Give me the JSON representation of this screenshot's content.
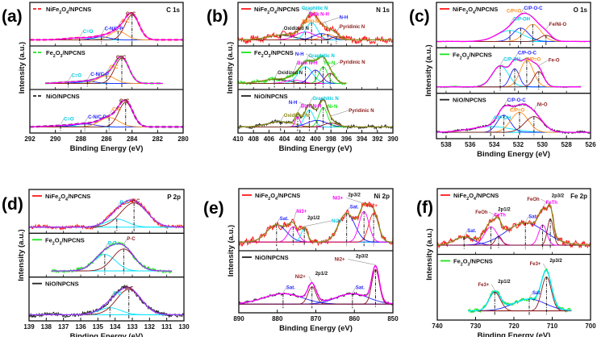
{
  "y_axis_label": "Intensity (a.u.)",
  "x_axis_label": "Binding Energy (eV)",
  "colors": {
    "NiFe2O4": "#ff1a1a",
    "Fe2O3": "#19e619",
    "NiO": "#222222"
  },
  "chart_data": [
    {
      "type": "line",
      "panel": "(a)",
      "title": "C 1s",
      "xlim": [
        292,
        280
      ],
      "ticks": [
        292,
        290,
        288,
        286,
        284,
        282,
        280
      ],
      "xlabel": "Binding Energy (eV)",
      "ylabel": "Intensity (a.u.)",
      "envelope_color": "#ff00ff",
      "legend_style": "dashed",
      "subpanels": [
        {
          "legend": "NiFe2O4/NPCNS",
          "color": "#ff1a1a",
          "noise": 0.0,
          "range": [
            292,
            280
          ],
          "peaks": [
            {
              "label": "C=O",
              "center": 288.1,
              "amp": 0.08,
              "fwhm": 2.5,
              "color": "#00e5ff"
            },
            {
              "label": "C-N/C-P",
              "center": 286.4,
              "amp": 0.12,
              "fwhm": 1.5,
              "color": "#1f1fff"
            },
            {
              "label": "C-C",
              "center": 285.1,
              "amp": 0.35,
              "fwhm": 1.5,
              "color": "#ff8c1a"
            },
            {
              "label": "C=C",
              "center": 284.0,
              "amp": 1.0,
              "fwhm": 1.3,
              "color": "#8b1a1a"
            }
          ]
        },
        {
          "legend": "Fe2O3/NPCNS",
          "color": "#19e619",
          "noise": 0.0,
          "range": [
            290.8,
            281.6
          ],
          "peaks": [
            {
              "label": "C=O",
              "center": 289.0,
              "amp": 0.05,
              "fwhm": 2.0,
              "color": "#00e5ff"
            },
            {
              "label": "C-N/C-P",
              "center": 287.5,
              "amp": 0.08,
              "fwhm": 1.6,
              "color": "#1f1fff"
            },
            {
              "label": "C-C",
              "center": 286.0,
              "amp": 0.3,
              "fwhm": 1.6,
              "color": "#ff8c1a"
            },
            {
              "label": "C=C",
              "center": 284.8,
              "amp": 1.0,
              "fwhm": 1.3,
              "color": "#8b1a1a"
            }
          ]
        },
        {
          "legend": "NiO/NPCNS",
          "color": "#222222",
          "noise": 0.0,
          "range": [
            292,
            280
          ],
          "peaks": [
            {
              "label": "C=O",
              "center": 289.6,
              "amp": 0.05,
              "fwhm": 2.5,
              "color": "#00e5ff"
            },
            {
              "label": "C-N/C-P",
              "center": 287.7,
              "amp": 0.12,
              "fwhm": 2.0,
              "color": "#1f1fff"
            },
            {
              "label": "C-C",
              "center": 285.8,
              "amp": 0.38,
              "fwhm": 1.8,
              "color": "#ff8c1a"
            },
            {
              "label": "C=C",
              "center": 284.5,
              "amp": 1.0,
              "fwhm": 1.3,
              "color": "#8b1a1a"
            }
          ]
        }
      ]
    },
    {
      "type": "line",
      "panel": "(b)",
      "title": "N 1s",
      "xlim": [
        410,
        390
      ],
      "ticks": [
        410,
        408,
        406,
        404,
        402,
        400,
        398,
        396,
        394,
        392,
        390
      ],
      "xlabel": "Binding Energy (eV)",
      "ylabel": "Intensity (a.u.)",
      "envelope_color": "#8b8b1a",
      "legend_style": "solid",
      "subpanels": [
        {
          "legend": "NiFe2O4/NPCNS",
          "color": "#ff1a1a",
          "noise": 0.09,
          "range": [
            410,
            390
          ],
          "peaks": [
            {
              "label": "Oxidized N",
              "center": 404.5,
              "amp": 0.15,
              "fwhm": 4.0,
              "color": "#222222"
            },
            {
              "label": "Bulk N-H",
              "center": 401.3,
              "amp": 0.25,
              "fwhm": 3.0,
              "color": "#ff00ff"
            },
            {
              "label": "Graphitic N",
              "center": 400.5,
              "amp": 0.55,
              "fwhm": 1.8,
              "color": "#00e5ff"
            },
            {
              "label": "N-H",
              "center": 399.2,
              "amp": 0.2,
              "fwhm": 2.5,
              "color": "#1f1fff"
            },
            {
              "label": "Fe/Ni-N",
              "center": 398.4,
              "amp": 0.18,
              "fwhm": 2.0,
              "color": "#ff8c1a"
            },
            {
              "label": "Pyridinic N",
              "center": 397.3,
              "amp": 0.1,
              "fwhm": 1.5,
              "color": "#8b1a1a"
            }
          ]
        },
        {
          "legend": "Fe2O3/NPCNS",
          "color": "#19e619",
          "noise": 0.04,
          "range": [
            410,
            396
          ],
          "peaks": [
            {
              "label": "Oxidized N",
              "center": 405.3,
              "amp": 0.12,
              "fwhm": 4.0,
              "color": "#222222"
            },
            {
              "label": "Bulk N-H",
              "center": 402.8,
              "amp": 0.1,
              "fwhm": 2.5,
              "color": "#ff00ff"
            },
            {
              "label": "Graphitic N",
              "center": 401.3,
              "amp": 0.5,
              "fwhm": 2.2,
              "color": "#00e5ff"
            },
            {
              "label": "N-H",
              "center": 400.0,
              "amp": 0.4,
              "fwhm": 1.8,
              "color": "#1f1fff"
            },
            {
              "label": "Fe-N",
              "center": 399.0,
              "amp": 0.5,
              "fwhm": 1.3,
              "color": "#19e619"
            },
            {
              "label": "Pyridinic N",
              "center": 398.1,
              "amp": 0.3,
              "fwhm": 1.5,
              "color": "#8b1a1a"
            }
          ]
        },
        {
          "legend": "NiO/NPCNS",
          "color": "#222222",
          "noise": 0.05,
          "range": [
            410,
            390
          ],
          "peaks": [
            {
              "label": "Oxidized N",
              "center": 404.5,
              "amp": 0.2,
              "fwhm": 4.0,
              "color": "#8b8b1a"
            },
            {
              "label": "Bulk N-H",
              "center": 402.3,
              "amp": 0.4,
              "fwhm": 0.7,
              "color": "#ff00ff"
            },
            {
              "label": "Graphitic N",
              "center": 400.8,
              "amp": 0.65,
              "fwhm": 1.4,
              "color": "#00e5ff"
            },
            {
              "label": "N-H",
              "center": 399.8,
              "amp": 0.25,
              "fwhm": 3.0,
              "color": "#1f1fff"
            },
            {
              "label": "Ni-N",
              "center": 399.0,
              "amp": 0.75,
              "fwhm": 1.3,
              "color": "#19e619"
            },
            {
              "label": "Pyridinic N",
              "center": 398.0,
              "amp": 0.15,
              "fwhm": 2.0,
              "color": "#8b1a1a"
            }
          ]
        }
      ]
    },
    {
      "type": "line",
      "panel": "(c)",
      "title": "O 1s",
      "xlim": [
        538.8,
        526
      ],
      "ticks": [
        538,
        536,
        534,
        532,
        530,
        528,
        526
      ],
      "xlabel": "Binding Energy (eV)",
      "ylabel": "Intensity (a.u.)",
      "envelope_color": "#ff00ff",
      "legend_style": "solid",
      "subpanels": [
        {
          "legend": "NiFe2O4/NPCNS",
          "color": "#ff1a1a",
          "noise": 0.01,
          "range": [
            538.8,
            526
          ],
          "peaks": [
            {
              "label": "C/P-OH",
              "center": 532.7,
              "amp": 0.45,
              "fwhm": 2.6,
              "color": "#00e5ff"
            },
            {
              "label": "C/P-O-C",
              "center": 531.8,
              "amp": 0.55,
              "fwhm": 1.5,
              "color": "#1f1fff"
            },
            {
              "label": "C/P=O",
              "center": 530.8,
              "amp": 0.7,
              "fwhm": 1.6,
              "color": "#ff8c1a"
            },
            {
              "label": "Fe/Ni-O",
              "center": 529.7,
              "amp": 0.25,
              "fwhm": 1.2,
              "color": "#8b1a1a"
            }
          ]
        },
        {
          "legend": "Fe2O3/NPCNS",
          "color": "#19e619",
          "noise": 0.02,
          "range": [
            538.8,
            526.8
          ],
          "peaks": [
            {
              "label": "C/P-OH",
              "center": 533.5,
              "amp": 0.75,
              "fwhm": 1.6,
              "color": "#00e5ff"
            },
            {
              "label": "C/P-O-C",
              "center": 532.3,
              "amp": 0.65,
              "fwhm": 0.9,
              "color": "#1f1fff"
            },
            {
              "label": "C/P=O",
              "center": 531.3,
              "amp": 0.95,
              "fwhm": 1.3,
              "color": "#ff8c1a"
            },
            {
              "label": "Fe-O",
              "center": 530.3,
              "amp": 0.55,
              "fwhm": 1.0,
              "color": "#8b1a1a"
            }
          ]
        },
        {
          "legend": "NiO/NPCNS",
          "color": "#222222",
          "noise": 0.03,
          "range": [
            538.8,
            526
          ],
          "peaks": [
            {
              "label": "C/P-OH",
              "center": 534.3,
              "amp": 0.2,
              "fwhm": 4.0,
              "color": "#00e5ff"
            },
            {
              "label": "C/P-O-C",
              "center": 533.2,
              "amp": 0.6,
              "fwhm": 1.3,
              "color": "#1f1fff"
            },
            {
              "label": "C/P=O",
              "center": 531.9,
              "amp": 0.7,
              "fwhm": 1.7,
              "color": "#ff8c1a"
            },
            {
              "label": "Ni-O",
              "center": 530.7,
              "amp": 0.55,
              "fwhm": 1.8,
              "color": "#8b1a1a"
            }
          ]
        }
      ]
    },
    {
      "type": "line",
      "panel": "(d)",
      "title": "P 2p",
      "xlim": [
        139,
        130
      ],
      "ticks": [
        139,
        138,
        137,
        136,
        135,
        134,
        133,
        132,
        131,
        130
      ],
      "xlabel": "Binding Energy (eV)",
      "ylabel": "Intensity (a.u.)",
      "envelope_color": "#9933ff",
      "legend_style": "solid",
      "subpanels": [
        {
          "legend": "NiFe2O4/NPCNS",
          "color": "#ff1a1a",
          "noise": 0.06,
          "range": [
            139,
            130
          ],
          "peaks": [
            {
              "label": "P-O",
              "center": 133.9,
              "amp": 0.3,
              "fwhm": 1.5,
              "color": "#00e5ff"
            },
            {
              "label": "P-C",
              "center": 132.9,
              "amp": 0.9,
              "fwhm": 1.8,
              "color": "#8b1a1a"
            }
          ]
        },
        {
          "legend": "Fe2O3/NPCNS",
          "color": "#19e619",
          "noise": 0.05,
          "range": [
            137.7,
            130.7
          ],
          "peaks": [
            {
              "label": "P-O",
              "center": 134.6,
              "amp": 0.6,
              "fwhm": 1.5,
              "color": "#00e5ff"
            },
            {
              "label": "P-C",
              "center": 133.5,
              "amp": 0.8,
              "fwhm": 1.5,
              "color": "#8b1a1a"
            }
          ]
        },
        {
          "legend": "NiO/NPCNS",
          "color": "#222222",
          "noise": 0.06,
          "range": [
            139,
            130
          ],
          "peaks": [
            {
              "label": "P-O",
              "center": 134.3,
              "amp": 0.25,
              "fwhm": 1.5,
              "color": "#00e5ff"
            },
            {
              "label": "P-C",
              "center": 133.2,
              "amp": 0.9,
              "fwhm": 1.7,
              "color": "#8b1a1a"
            }
          ]
        }
      ]
    },
    {
      "type": "line",
      "panel": "(e)",
      "title": "Ni 2p",
      "xlim": [
        890,
        850
      ],
      "ticks": [
        890,
        880,
        870,
        860,
        850
      ],
      "xlabel": "Binding Energy (eV)",
      "ylabel": "Intensity (a.u.)",
      "legend_style": "solid",
      "subpanels": [
        {
          "legend": "NiFe2O4/NPCNS",
          "color": "#ff1a1a",
          "envelope_color": "#8b8b1a",
          "noise": 0.07,
          "range": [
            890,
            850
          ],
          "peaks": [
            {
              "label": "Sat.",
              "center": 880.2,
              "amp": 0.45,
              "fwhm": 6.0,
              "color": "#1f1fff"
            },
            {
              "label": "Ni3+",
              "center": 875.9,
              "amp": 0.4,
              "fwhm": 3.0,
              "color": "#ff00ff"
            },
            {
              "label": "Ni2+",
              "center": 873.0,
              "amp": 0.35,
              "fwhm": 2.0,
              "color": "#00e5ff"
            },
            {
              "label": "Sat.",
              "center": 862.0,
              "amp": 0.75,
              "fwhm": 5.0,
              "color": "#1f1fff"
            },
            {
              "label": "Ni3+",
              "center": 857.5,
              "amp": 0.8,
              "fwhm": 3.0,
              "color": "#ff00ff"
            },
            {
              "label": "Ni2+",
              "center": 855.0,
              "amp": 0.75,
              "fwhm": 3.0,
              "color": "#ff1a1a"
            }
          ],
          "annotations": [
            {
              "label": "2p1/2",
              "at": 873.0
            },
            {
              "label": "2p3/2",
              "at": 856.5
            }
          ]
        },
        {
          "legend": "NiO/NPCNS",
          "color": "#222222",
          "envelope_color": "#ff00ff",
          "noise": 0.025,
          "range": [
            890,
            850
          ],
          "peaks": [
            {
              "label": "Sat.",
              "center": 878.5,
              "amp": 0.3,
              "fwhm": 12.0,
              "color": "#1f1fff"
            },
            {
              "label": "Ni2+",
              "center": 871.0,
              "amp": 0.5,
              "fwhm": 2.5,
              "color": "#8b1a1a"
            },
            {
              "label": "Sat.",
              "center": 860.5,
              "amp": 0.3,
              "fwhm": 10.0,
              "color": "#1f1fff"
            },
            {
              "label": "Ni2+",
              "center": 854.5,
              "amp": 1.0,
              "fwhm": 2.3,
              "color": "#8b1a1a"
            }
          ],
          "annotations": [
            {
              "label": "2p1/2",
              "at": 871.0
            },
            {
              "label": "2p3/2",
              "at": 854.5
            }
          ]
        }
      ]
    },
    {
      "type": "line",
      "panel": "(f)",
      "title": "Fe 2p",
      "xlim": [
        740,
        700
      ],
      "ticks": [
        740,
        730,
        720,
        710,
        700
      ],
      "xlabel": "Binding Energy (eV)",
      "ylabel": "Intensity (a.u.)",
      "legend_style": "solid",
      "subpanels": [
        {
          "legend": "NiFe2O4/NPCNS",
          "color": "#ff1a1a",
          "envelope_color": "#8b8b1a",
          "noise": 0.06,
          "range": [
            740,
            700
          ],
          "peaks": [
            {
              "label": "Sat.",
              "center": 733.0,
              "amp": 0.2,
              "fwhm": 6.0,
              "color": "#1f1fff"
            },
            {
              "label": "FeTh",
              "center": 726.0,
              "amp": 0.45,
              "fwhm": 4.0,
              "color": "#ff00ff"
            },
            {
              "label": "FeOh",
              "center": 724.0,
              "amp": 0.22,
              "fwhm": 2.0,
              "color": "#8b1a1a"
            },
            {
              "label": "Sat.",
              "center": 717.0,
              "amp": 0.55,
              "fwhm": 12.0,
              "color": "#1f1fff"
            },
            {
              "label": "FeTh",
              "center": 712.5,
              "amp": 0.5,
              "fwhm": 2.5,
              "color": "#ff00ff"
            },
            {
              "label": "FeOh",
              "center": 710.5,
              "amp": 0.65,
              "fwhm": 1.8,
              "color": "#8b1a1a"
            }
          ],
          "annotations": [
            {
              "label": "2p1/2",
              "at": 725.0
            },
            {
              "label": "2p3/2",
              "at": 711.0
            }
          ]
        },
        {
          "legend": "Fe2O3/NPCNS",
          "color": "#19e619",
          "envelope_color": "#00e5ff",
          "noise": 0.04,
          "range": [
            732,
            705
          ],
          "peaks": [
            {
              "label": "Fe3+",
              "center": 725.0,
              "amp": 0.55,
              "fwhm": 3.5,
              "color": "#8b1a1a"
            },
            {
              "label": "Sat.",
              "center": 716.0,
              "amp": 0.35,
              "fwhm": 10.0,
              "color": "#1f1fff"
            },
            {
              "label": "Fe3+",
              "center": 711.5,
              "amp": 1.0,
              "fwhm": 3.0,
              "color": "#8b1a1a"
            }
          ],
          "annotations": [
            {
              "label": "2p1/2",
              "at": 725.0
            },
            {
              "label": "2p3/2",
              "at": 711.5
            }
          ]
        }
      ]
    }
  ]
}
